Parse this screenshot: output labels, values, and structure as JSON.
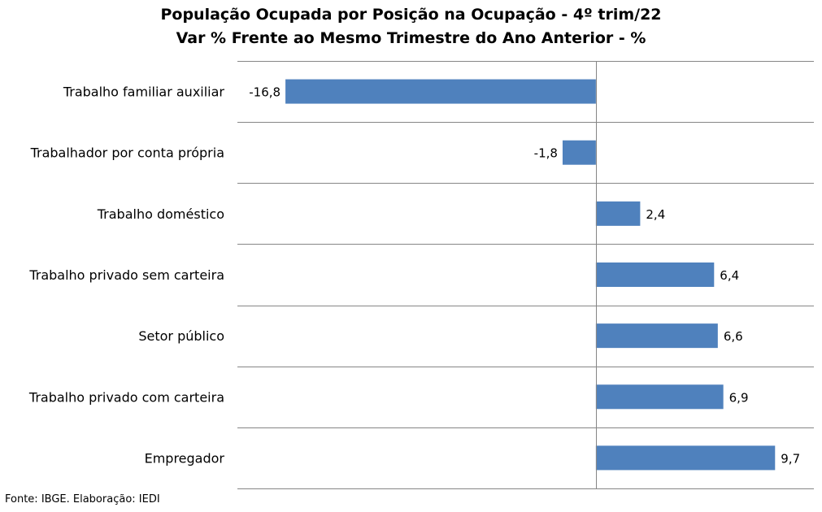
{
  "chart_data": {
    "type": "bar",
    "orientation": "horizontal",
    "title": "População Ocupada por Posição na Ocupação - 4º trim/22",
    "subtitle": "Var % Frente ao Mesmo Trimestre do Ano Anterior - %",
    "categories": [
      "Trabalho familiar auxiliar",
      "Trabalhador por conta própria",
      "Trabalho doméstico",
      "Trabalho privado sem carteira",
      "Setor público",
      "Trabalho privado com carteira",
      "Empregador"
    ],
    "values": [
      -16.8,
      -1.8,
      2.4,
      6.4,
      6.6,
      6.9,
      9.7
    ],
    "value_labels": [
      "-16,8",
      "-1,8",
      "2,4",
      "6,4",
      "6,6",
      "6,9",
      "9,7"
    ],
    "xlim": [
      -19.4,
      11.8
    ],
    "grid": true,
    "bar_color": "#4F81BD",
    "grid_color": "#868686",
    "legend": "none"
  },
  "source": "Fonte: IBGE. Elaboração: IEDI"
}
